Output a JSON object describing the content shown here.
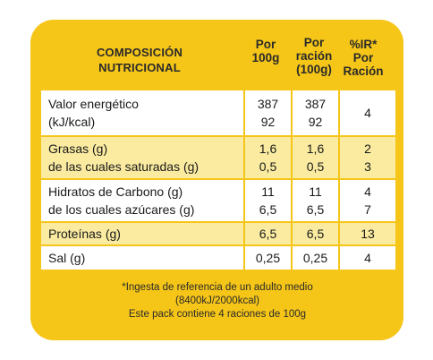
{
  "header": {
    "title_line1": "COMPOSICIÓN",
    "title_line2": "NUTRICIONAL",
    "col1_line1": "Por",
    "col1_line2": "100g",
    "col2_line1": "Por",
    "col2_line2": "ración",
    "col2_line3": "(100g)",
    "col3_line1": "%IR*",
    "col3_line2": "Por",
    "col3_line3": "Ración"
  },
  "rows": [
    {
      "label_line1": "Valor energético",
      "label_line2": "(kJ/kcal)",
      "per100_line1": "387",
      "per100_line2": "92",
      "serving_line1": "387",
      "serving_line2": "92",
      "ri": "4"
    },
    {
      "label_line1": "Grasas (g)",
      "label_line2": "de las cuales saturadas (g)",
      "per100_line1": "1,6",
      "per100_line2": "0,5",
      "serving_line1": "1,6",
      "serving_line2": "0,5",
      "ri_line1": "2",
      "ri_line2": "3"
    },
    {
      "label_line1": "Hidratos de Carbono (g)",
      "label_line2": "de los cuales azúcares (g)",
      "per100_line1": "11",
      "per100_line2": "6,5",
      "serving_line1": "11",
      "serving_line2": "6,5",
      "ri_line1": "4",
      "ri_line2": "7"
    },
    {
      "label": "Proteínas (g)",
      "per100": "6,5",
      "serving": "6,5",
      "ri": "13"
    },
    {
      "label": "Sal (g)",
      "per100": "0,25",
      "serving": "0,25",
      "ri": "4"
    }
  ],
  "footer": {
    "line1": "*Ingesta de referencia de un adulto medio",
    "line2": "(8400kJ/2000kcal)",
    "line3": "Este pack contiene 4 raciones de 100g"
  },
  "colors": {
    "panel": "#f5c518",
    "pale_row": "#faeba0",
    "white_row": "#ffffff"
  }
}
